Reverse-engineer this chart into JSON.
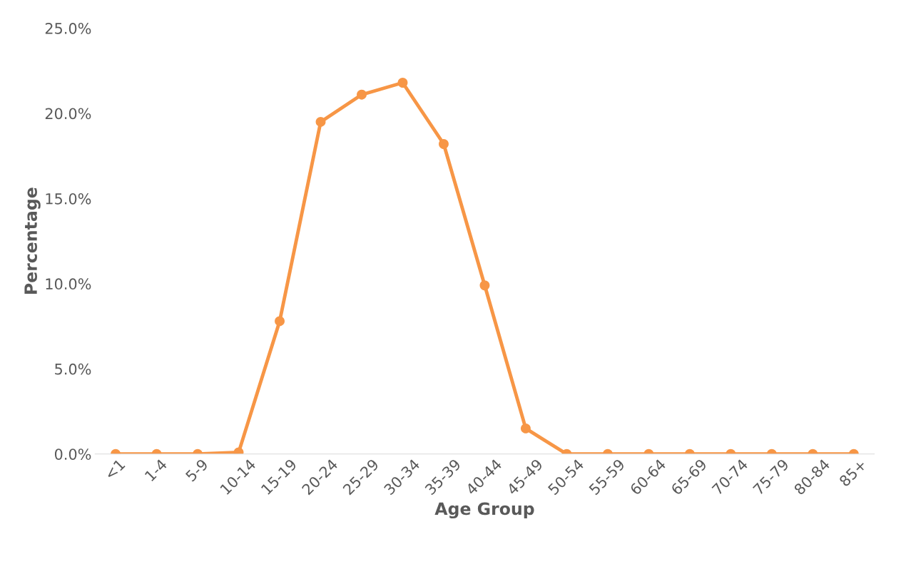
{
  "chart_data": {
    "type": "line",
    "xlabel": "Age Group",
    "ylabel": "Percentage",
    "categories": [
      "<1",
      "1-4",
      "5-9",
      "10-14",
      "15-19",
      "20-24",
      "25-29",
      "30-34",
      "35-39",
      "40-44",
      "45-49",
      "50-54",
      "55-59",
      "60-64",
      "65-69",
      "70-74",
      "75-79",
      "80-84",
      "85+"
    ],
    "series": [
      {
        "color": "#f79646",
        "values": [
          0,
          0,
          0,
          0.1,
          7.8,
          19.5,
          21.1,
          21.8,
          18.2,
          9.9,
          1.5,
          0,
          0,
          0,
          0,
          0,
          0,
          0,
          0
        ]
      }
    ],
    "ylim": [
      0,
      25
    ],
    "yticks": [
      {
        "value": 0,
        "label": "0.0%"
      },
      {
        "value": 5,
        "label": "5.0%"
      },
      {
        "value": 10,
        "label": "10.0%"
      },
      {
        "value": 15,
        "label": "15.0%"
      },
      {
        "value": 20,
        "label": "20.0%"
      },
      {
        "value": 25,
        "label": "25.0%"
      }
    ],
    "marker": "circle",
    "line_style": "solid"
  }
}
